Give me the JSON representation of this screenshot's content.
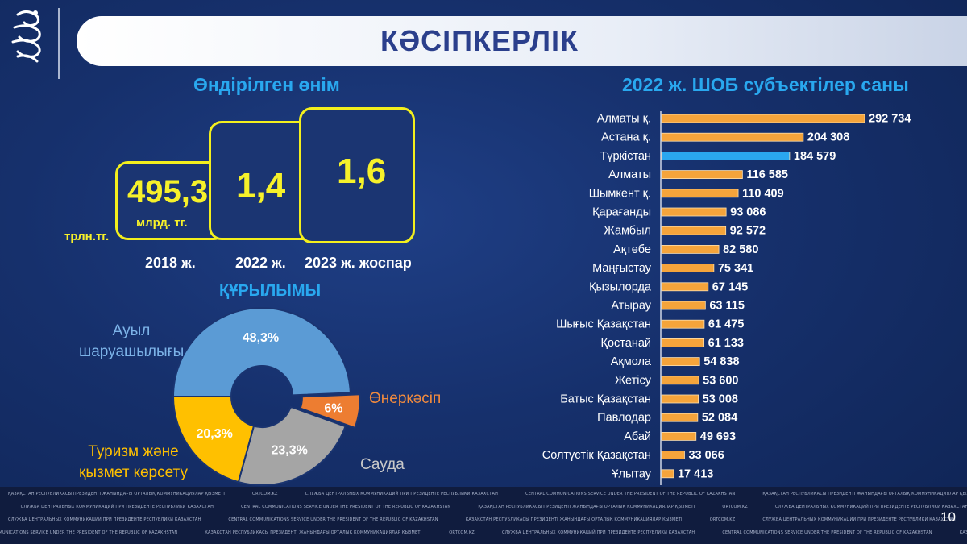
{
  "header": {
    "title": "КӘСІПКЕРЛІК"
  },
  "production": {
    "title": "Өндірілген өнім",
    "unit_label": "трлн.тг.",
    "items": [
      {
        "value": "495,3",
        "sub": "млрд. тг.",
        "year": "2018 ж."
      },
      {
        "value": "1,4",
        "sub": "",
        "year": "2022 ж."
      },
      {
        "value": "1,6",
        "sub": "",
        "year": "2023 ж. жоспар"
      }
    ]
  },
  "structure": {
    "title": "ҚҰРЫЛЫМЫ",
    "slices": [
      {
        "label": "Ауыл шаруашылығы",
        "line1": "Ауыл",
        "line2": "шаруашылығы",
        "value": 48.3,
        "value_label": "48,3%",
        "color": "#5b9bd5",
        "label_color": "#7cb3e8"
      },
      {
        "label": "Өнеркәсіп",
        "line1": "Өнеркәсіп",
        "line2": "",
        "value": 6,
        "value_label": "6%",
        "color": "#ed7d31",
        "label_color": "#f08a3e"
      },
      {
        "label": "Сауда",
        "line1": "Сауда",
        "line2": "",
        "value": 23.3,
        "value_label": "23,3%",
        "color": "#a5a5a5",
        "label_color": "#c9c9c9"
      },
      {
        "label": "Туризм және қызмет көрсету",
        "line1": "Туризм және",
        "line2": "қызмет көрсету",
        "value": 20.3,
        "value_label": "20,3%",
        "color": "#ffc000",
        "label_color": "#ffc000"
      }
    ]
  },
  "chart_data": {
    "type": "bar",
    "orientation": "horizontal",
    "title": "2022 ж. ШОБ субъектілер саны",
    "categories": [
      "Алматы қ.",
      "Астана қ.",
      "Түркістан",
      "Алматы",
      "Шымкент қ.",
      "Қарағанды",
      "Жамбыл",
      "Ақтөбе",
      "Маңғыстау",
      "Қызылорда",
      "Атырау",
      "Шығыс Қазақстан",
      "Қостанай",
      "Ақмола",
      "Жетісу",
      "Батыс Қазақстан",
      "Павлодар",
      "Абай",
      "Солтүстік Қазақстан",
      "Ұлытау"
    ],
    "values": [
      292734,
      204308,
      184579,
      116585,
      110409,
      93086,
      92572,
      82580,
      75341,
      67145,
      63115,
      61475,
      61133,
      54838,
      53600,
      53008,
      52084,
      49693,
      33066,
      17413
    ],
    "value_labels": [
      "292 734",
      "204 308",
      "184 579",
      "116 585",
      "110 409",
      "93 086",
      "92 572",
      "82 580",
      "75 341",
      "67 145",
      "63 115",
      "61 475",
      "61 133",
      "54 838",
      "53 600",
      "53 008",
      "52 084",
      "49 693",
      "33 066",
      "17 413"
    ],
    "highlight_index": 2,
    "bar_color": "#f5a43b",
    "highlight_color": "#2aa7ef",
    "xlim": [
      0,
      300000
    ],
    "grid": false
  },
  "footer": {
    "texts": [
      "ҚАЗАҚСТАН РЕСПУБЛИКАСЫ ПРЕЗИДЕНТІ ЖАНЫНДАҒЫ ОРТАЛЫҚ КОММУНИКАЦИЯЛАР ҚЫЗМЕТІ",
      "ORTCOM.KZ",
      "СЛУЖБА ЦЕНТРАЛЬНЫХ КОММУНИКАЦИЙ ПРИ ПРЕЗИДЕНТЕ РЕСПУБЛИКИ КАЗАХСТАН",
      "CENTRAL COMMUNICATIONS SERVICE UNDER THE PRESIDENT OF THE REPUBLIC OF KAZAKHSTAN"
    ],
    "page_number": "10"
  }
}
